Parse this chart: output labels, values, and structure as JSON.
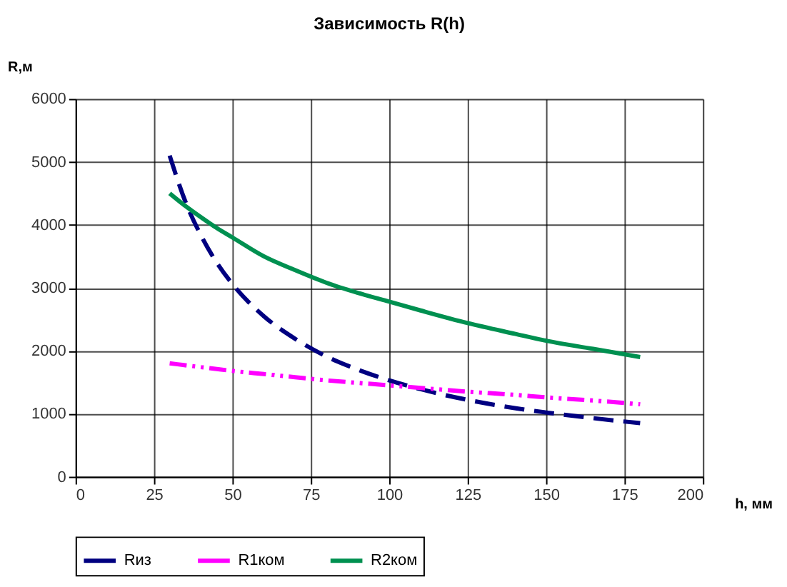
{
  "chart_data": {
    "type": "line",
    "title": "Зависимость R(h)",
    "xlabel": "h, мм",
    "ylabel": "R,м",
    "xlim": [
      0,
      200
    ],
    "xticks": [
      0,
      25,
      50,
      75,
      100,
      125,
      150,
      175,
      200
    ],
    "ylim": [
      0,
      6000
    ],
    "yticks": [
      0,
      1000,
      2000,
      3000,
      4000,
      5000,
      6000
    ],
    "grid": true,
    "legend": "bottom",
    "marker": "none",
    "series": [
      {
        "name": "Rиз",
        "color": "#000080",
        "line_style": "dashed",
        "x": [
          30,
          35,
          40,
          45,
          50,
          60,
          70,
          80,
          90,
          100,
          110,
          125,
          140,
          150,
          165,
          180
        ],
        "values": [
          5100,
          4370,
          3830,
          3400,
          3060,
          2550,
          2190,
          1910,
          1700,
          1530,
          1390,
          1220,
          1090,
          1020,
          930,
          850
        ]
      },
      {
        "name": "R1ком",
        "color": "#ff00ff",
        "line_style": "dotted",
        "x": [
          30,
          35,
          40,
          45,
          50,
          60,
          70,
          80,
          90,
          100,
          110,
          125,
          140,
          150,
          165,
          180
        ],
        "values": [
          1800,
          1770,
          1740,
          1710,
          1680,
          1630,
          1580,
          1530,
          1490,
          1450,
          1410,
          1350,
          1300,
          1260,
          1210,
          1150
        ]
      },
      {
        "name": "R2ком",
        "color": "#009050",
        "line_style": "solid",
        "x": [
          30,
          35,
          40,
          45,
          50,
          60,
          70,
          80,
          90,
          100,
          110,
          125,
          140,
          150,
          165,
          180
        ],
        "values": [
          4500,
          4300,
          4120,
          3950,
          3800,
          3500,
          3280,
          3080,
          2920,
          2780,
          2640,
          2440,
          2270,
          2160,
          2030,
          1900
        ]
      }
    ]
  }
}
